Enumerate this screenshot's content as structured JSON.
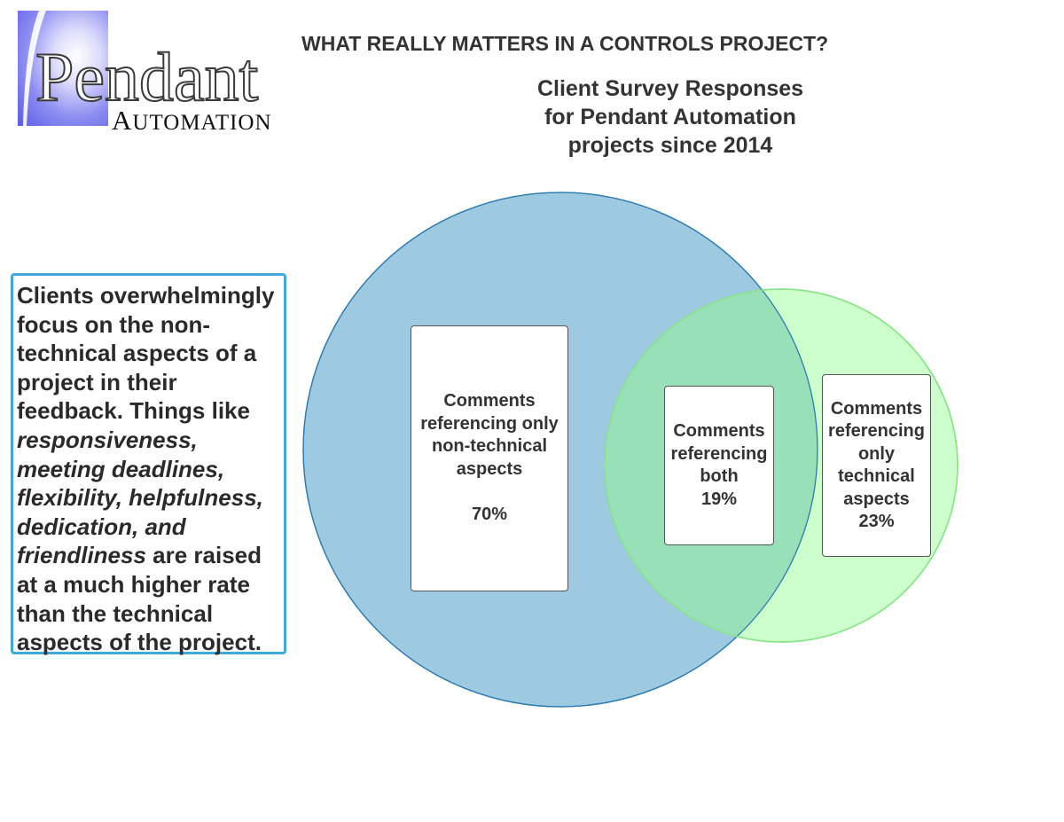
{
  "logo": {
    "brand": "Pendant",
    "sub_first": "A",
    "sub_rest": "UTOMATION"
  },
  "title": "WHAT REALLY MATTERS IN A CONTROLS PROJECT?",
  "subtitle_lines": [
    "Client Survey Responses",
    "for Pendant Automation",
    "projects since 2014"
  ],
  "callout": {
    "p1": "Clients overwhelmingly focus on the non-technical aspects of a project in their feedback.  Things like ",
    "italic": "responsiveness, meeting deadlines, flexibility, helpfulness, dedication, and friendliness",
    "p2": " are raised at a much higher rate than the technical aspects of the project."
  },
  "colors": {
    "non_technical": "#9ecae1",
    "technical": "#ccffcc",
    "overlap": "#98e0b8",
    "callout_border": "#3fa9d9"
  },
  "sets": [
    {
      "lines": [
        "Comments",
        "referencing only",
        "non-technical",
        "aspects"
      ],
      "value": "70%"
    },
    {
      "lines": [
        "Comments",
        "referencing",
        "both"
      ],
      "value": "19%"
    },
    {
      "lines": [
        "Comments",
        "referencing",
        "only",
        "technical",
        "aspects"
      ],
      "value": "23%"
    }
  ]
}
